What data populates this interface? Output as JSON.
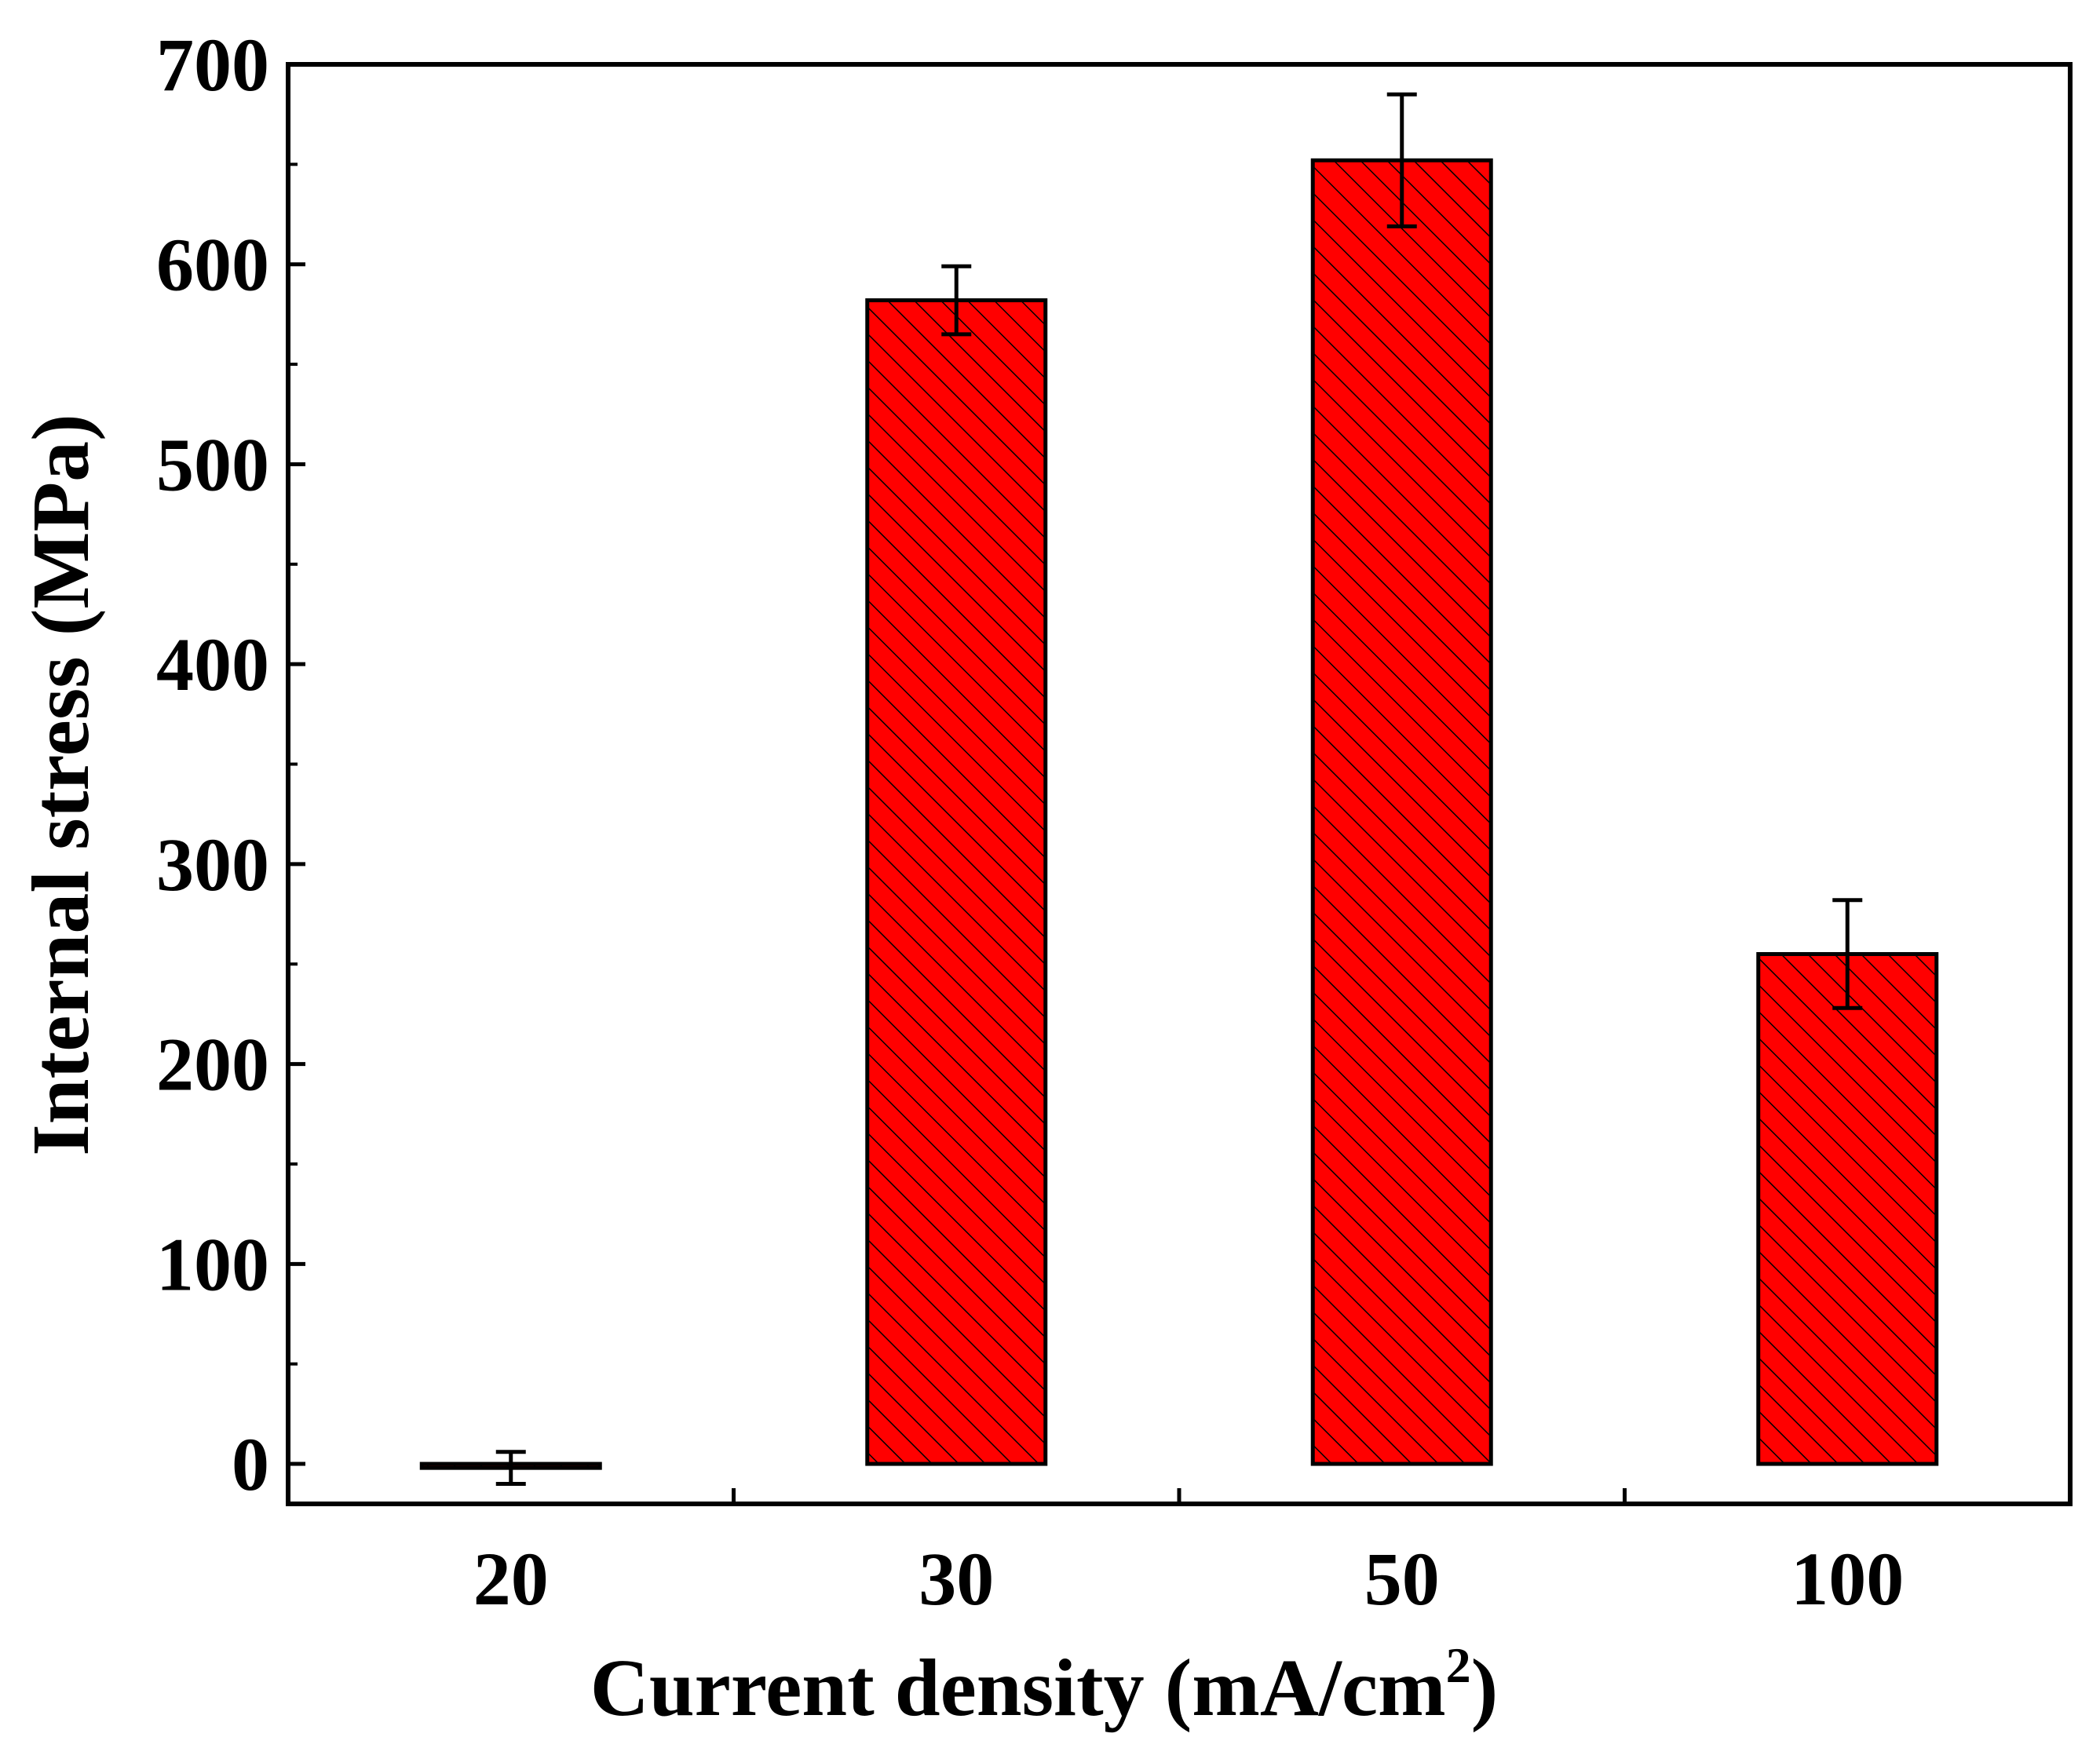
{
  "chart_data": {
    "type": "bar",
    "title": "",
    "xlabel": "Current density (mA/cm",
    "xlabel_superscript": "2",
    "xlabel_suffix": ")",
    "ylabel": "Internal stress (MPa)",
    "categories": [
      "20",
      "30",
      "50",
      "100"
    ],
    "values": [
      -2,
      582,
      652,
      255
    ],
    "errors": [
      8,
      17,
      33,
      27
    ],
    "ylim": [
      -20,
      700
    ],
    "yticks": [
      0,
      100,
      200,
      300,
      400,
      500,
      600,
      700
    ],
    "yticks_labels": [
      "0",
      "100",
      "200",
      "300",
      "400",
      "500",
      "600",
      "700"
    ],
    "minor_tick_step": 50,
    "bar_color": "#ff0000",
    "hatch": "diagonal",
    "grid": false,
    "legend": "none"
  }
}
